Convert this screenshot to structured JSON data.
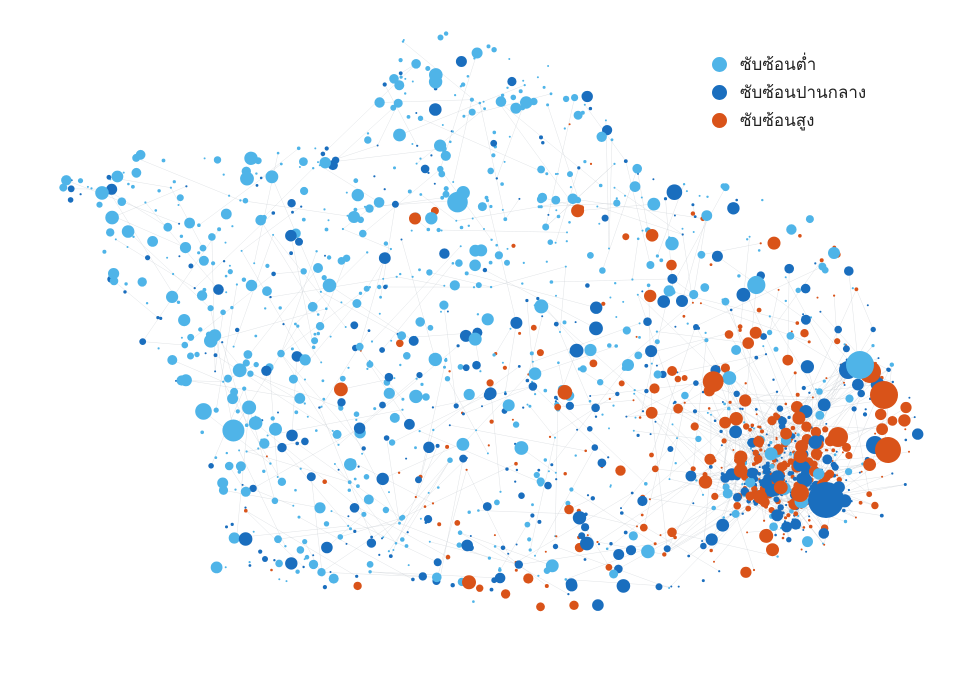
{
  "legend": {
    "items": [
      {
        "label": "ซับซ้อนต่ำ",
        "color": "#4fb4e8"
      },
      {
        "label": "ซับซ้อนปานกลาง",
        "color": "#1a6ebe"
      },
      {
        "label": "ซับซ้อนสูง",
        "color": "#d95319"
      }
    ]
  },
  "colors": {
    "edge": "#c8cdd2",
    "background": "#ffffff"
  }
}
